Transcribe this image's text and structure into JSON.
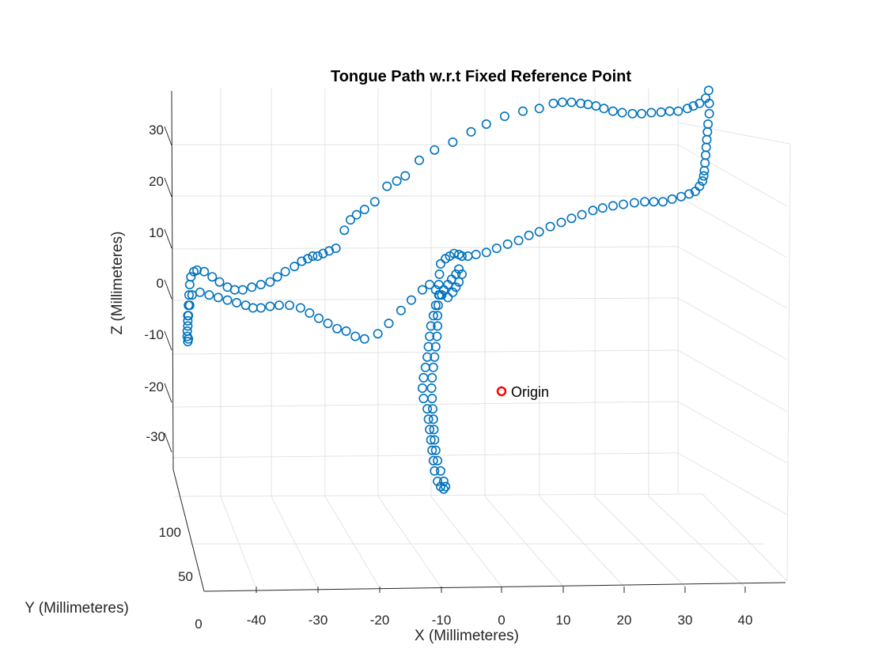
{
  "chart_data": {
    "type": "scatter",
    "title": "Tongue Path w.r.t Fixed Reference Point",
    "xlabel": "X (Millimeteres)",
    "ylabel": "Y (Millimeteres)",
    "zlabel": "Z (Millimeteres)",
    "x_ticks": [
      "-40",
      "-30",
      "-20",
      "-10",
      "0",
      "10",
      "20",
      "30",
      "40"
    ],
    "y_ticks": [
      "0",
      "50",
      "100"
    ],
    "z_ticks": [
      "30",
      "20",
      "10",
      "0",
      "-10",
      "-20",
      "-30"
    ],
    "grid": true,
    "marker": "circle",
    "series_color": "#0072BD",
    "origin_color": "#FF0000",
    "annotation": {
      "text": "Origin",
      "x": 0,
      "y": 0,
      "z": 0
    },
    "series": [
      {
        "points_xz": [
          [
            -51.5,
            -8
          ],
          [
            -51.5,
            -6
          ],
          [
            -51.4,
            -4
          ],
          [
            -51.3,
            -2
          ],
          [
            -51.2,
            0
          ],
          [
            -51.0,
            1.5
          ],
          [
            -50.5,
            2.5
          ],
          [
            -50,
            2.8
          ],
          [
            -48.8,
            2.5
          ],
          [
            -47.5,
            1.5
          ],
          [
            -46.3,
            0.5
          ],
          [
            -45,
            -0.5
          ],
          [
            -43.8,
            -1
          ],
          [
            -42.5,
            -1
          ],
          [
            -41,
            -0.5
          ],
          [
            -39.5,
            0
          ],
          [
            -38,
            0.5
          ],
          [
            -36.8,
            1.5
          ],
          [
            -35.5,
            2.5
          ],
          [
            -34,
            3.5
          ],
          [
            -32.8,
            4.5
          ],
          [
            -31.8,
            5
          ],
          [
            -31,
            5.5
          ],
          [
            -30.2,
            5.5
          ],
          [
            -29.3,
            6
          ],
          [
            -28.3,
            6.5
          ],
          [
            -27.2,
            7
          ],
          [
            -25.8,
            10.5
          ],
          [
            -24.8,
            12.5
          ],
          [
            -23.8,
            13.5
          ],
          [
            -22.5,
            14.5
          ],
          [
            -20.8,
            16
          ],
          [
            -18.8,
            19
          ],
          [
            -17.2,
            20
          ],
          [
            -15.8,
            21
          ],
          [
            -13.5,
            24
          ],
          [
            -11,
            26
          ],
          [
            -8,
            27.5
          ],
          [
            -5,
            29.5
          ],
          [
            -2.5,
            31
          ],
          [
            0.5,
            32.5
          ],
          [
            3.5,
            33.5
          ],
          [
            6.2,
            34
          ],
          [
            8.5,
            35
          ],
          [
            10,
            35.2
          ],
          [
            11.5,
            35.2
          ],
          [
            13,
            35
          ],
          [
            14.2,
            34.8
          ],
          [
            15.5,
            34.5
          ],
          [
            16.8,
            34
          ],
          [
            18.3,
            33.5
          ],
          [
            19.8,
            33.2
          ],
          [
            21.5,
            33
          ],
          [
            23,
            33
          ],
          [
            24.6,
            33.2
          ],
          [
            26.2,
            33.3
          ],
          [
            27.6,
            33.5
          ],
          [
            29,
            33.5
          ],
          [
            30.5,
            34
          ],
          [
            31.5,
            34.5
          ],
          [
            32.5,
            35
          ],
          [
            33.5,
            36
          ],
          [
            34,
            37.5
          ],
          [
            34.1,
            35
          ],
          [
            34.1,
            33
          ],
          [
            33.9,
            31
          ],
          [
            33.8,
            29.5
          ],
          [
            33.7,
            28
          ],
          [
            33.6,
            26.5
          ],
          [
            33.5,
            25
          ],
          [
            33.4,
            23.5
          ],
          [
            33.3,
            22
          ],
          [
            33.2,
            21
          ],
          [
            33,
            20
          ],
          [
            32.5,
            19
          ],
          [
            31.8,
            18
          ],
          [
            30.8,
            17.5
          ],
          [
            29.5,
            17
          ],
          [
            28,
            16.5
          ],
          [
            26.5,
            16
          ],
          [
            25,
            16
          ],
          [
            23.5,
            16
          ],
          [
            21.8,
            15.8
          ],
          [
            20,
            15.5
          ],
          [
            18.3,
            15.2
          ],
          [
            16.6,
            14.8
          ],
          [
            15,
            14.3
          ],
          [
            13.2,
            13.5
          ],
          [
            11.5,
            12.8
          ],
          [
            9.8,
            12
          ],
          [
            8,
            11.2
          ],
          [
            6.2,
            10.2
          ],
          [
            4.5,
            9.5
          ],
          [
            2.8,
            8.5
          ],
          [
            1,
            7.8
          ],
          [
            -0.8,
            7
          ],
          [
            -2.5,
            6.2
          ],
          [
            -4.2,
            5.8
          ],
          [
            -5.5,
            5.5
          ],
          [
            -6.5,
            5.5
          ],
          [
            -7,
            5.8
          ],
          [
            -7.8,
            6
          ],
          [
            -8.5,
            5.5
          ],
          [
            -9.2,
            5
          ],
          [
            -10,
            4
          ],
          [
            -10.2,
            2
          ],
          [
            -10.3,
            0
          ],
          [
            -10.3,
            -2
          ],
          [
            -10.4,
            -4
          ],
          [
            -10.5,
            -6
          ],
          [
            -10.5,
            -8
          ],
          [
            -10.6,
            -10
          ],
          [
            -10.8,
            -12
          ],
          [
            -11,
            -14
          ],
          [
            -11.2,
            -16
          ],
          [
            -11.4,
            -18
          ],
          [
            -11.5,
            -20
          ],
          [
            -11.4,
            -22
          ],
          [
            -11.3,
            -24
          ],
          [
            -11.2,
            -26
          ],
          [
            -11.1,
            -28
          ],
          [
            -11,
            -30
          ],
          [
            -10.8,
            -32
          ],
          [
            -10.5,
            -34
          ],
          [
            -10,
            -36
          ],
          [
            -9.5,
            -38
          ],
          [
            -9.2,
            -39
          ],
          [
            -9.5,
            -39.5
          ],
          [
            -10,
            -39
          ],
          [
            -10.5,
            -38
          ],
          [
            -11,
            -36
          ],
          [
            -11.2,
            -34
          ],
          [
            -11.4,
            -32
          ],
          [
            -11.6,
            -30
          ],
          [
            -11.8,
            -28
          ],
          [
            -12,
            -26
          ],
          [
            -12.2,
            -24
          ],
          [
            -12.8,
            -22
          ],
          [
            -13,
            -20
          ],
          [
            -12.8,
            -18
          ],
          [
            -12.5,
            -16
          ],
          [
            -12.2,
            -14
          ],
          [
            -12,
            -12
          ],
          [
            -11.8,
            -10
          ],
          [
            -11.6,
            -8
          ],
          [
            -11.2,
            -6
          ],
          [
            -10.8,
            -4
          ],
          [
            -10.2,
            -2
          ],
          [
            -9.5,
            -1
          ],
          [
            -8.8,
            0
          ],
          [
            -8.2,
            1
          ],
          [
            -7.5,
            2
          ],
          [
            -7,
            3
          ],
          [
            -6.5,
            2
          ],
          [
            -7,
            0.5
          ],
          [
            -7.5,
            -0.5
          ],
          [
            -8,
            -1.5
          ],
          [
            -8.8,
            -2.5
          ],
          [
            -9.8,
            -2
          ],
          [
            -10.8,
            -1
          ],
          [
            -11.8,
            0
          ],
          [
            -13,
            -1
          ],
          [
            -14.8,
            -3
          ],
          [
            -16.5,
            -5
          ],
          [
            -18.5,
            -7.5
          ],
          [
            -20.3,
            -9.5
          ],
          [
            -22.5,
            -10.5
          ],
          [
            -24,
            -10
          ],
          [
            -25.5,
            -9
          ],
          [
            -27,
            -8.5
          ],
          [
            -28.5,
            -7.5
          ],
          [
            -30,
            -6.5
          ],
          [
            -31.5,
            -5.5
          ],
          [
            -33,
            -4.5
          ],
          [
            -34.8,
            -4
          ],
          [
            -36.5,
            -4
          ],
          [
            -38,
            -4.2
          ],
          [
            -39.5,
            -4.5
          ],
          [
            -40.8,
            -4.5
          ],
          [
            -42,
            -4
          ],
          [
            -43.5,
            -3.5
          ],
          [
            -45,
            -3
          ],
          [
            -46.5,
            -2.5
          ],
          [
            -48,
            -2
          ],
          [
            -49.5,
            -1.5
          ],
          [
            -50.8,
            -2
          ],
          [
            -51.2,
            -4
          ],
          [
            -51.4,
            -6
          ],
          [
            -51.5,
            -7
          ],
          [
            -51.6,
            -9
          ],
          [
            -51.6,
            -10
          ],
          [
            -51.5,
            -11
          ],
          [
            -51.4,
            -10.5
          ]
        ]
      }
    ]
  }
}
